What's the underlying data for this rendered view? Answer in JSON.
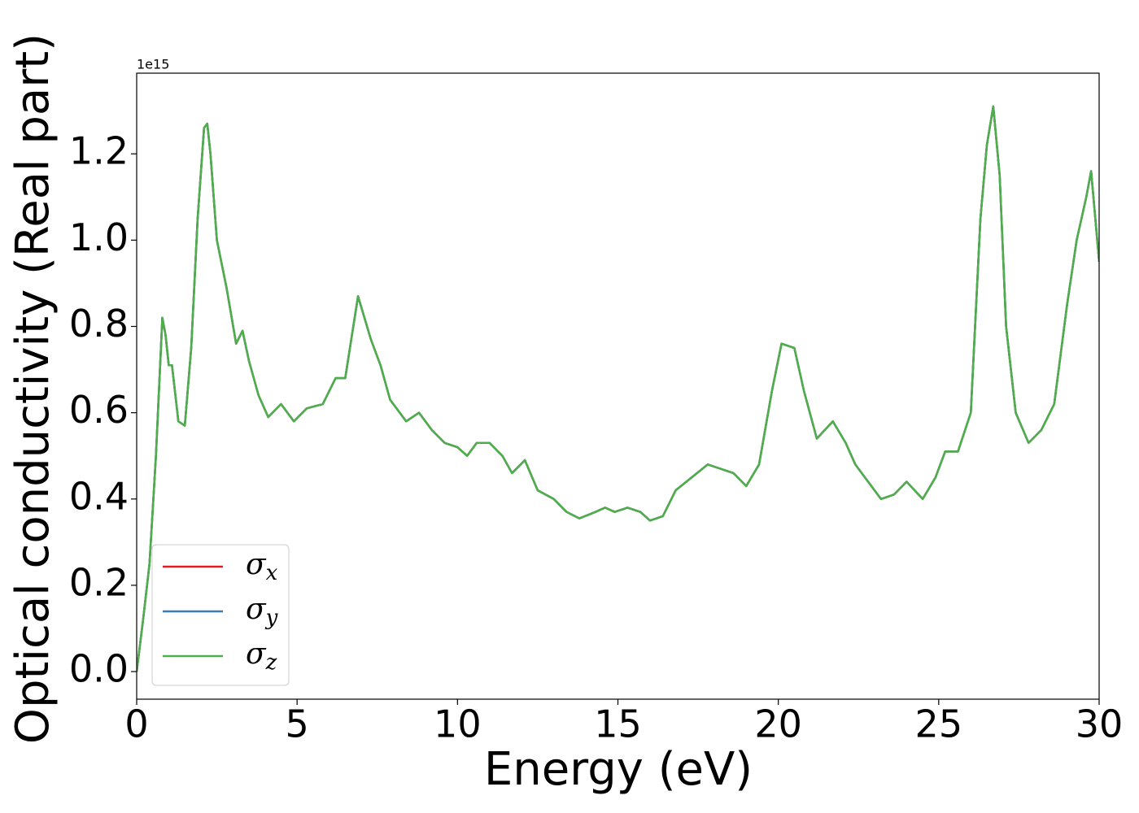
{
  "chart_data": {
    "type": "line",
    "x_label": "Energy (eV)",
    "y_label": "Optical conductivity (Real part)",
    "y_offset_label": "1e15",
    "xlim": [
      0,
      30
    ],
    "xticks": [
      0,
      5,
      10,
      15,
      20,
      25,
      30
    ],
    "ylim": [
      -0.064,
      1.387
    ],
    "yticks": [
      {
        "value": 0,
        "label": "0.0"
      },
      0.2,
      0.4,
      0.6,
      0.8,
      {
        "value": 1,
        "label": "1.0"
      },
      1.2
    ],
    "legend": "lower left",
    "x": [
      0,
      0.2,
      0.4,
      0.6,
      0.8,
      0.9,
      1.0,
      1.1,
      1.3,
      1.5,
      1.7,
      1.9,
      2.1,
      2.2,
      2.3,
      2.5,
      2.8,
      3.1,
      3.3,
      3.5,
      3.8,
      4.1,
      4.5,
      4.9,
      5.3,
      5.8,
      6.2,
      6.5,
      6.9,
      7.3,
      7.6,
      7.9,
      8.4,
      8.8,
      9.2,
      9.6,
      10.0,
      10.3,
      10.6,
      11.0,
      11.4,
      11.7,
      12.1,
      12.5,
      13.0,
      13.4,
      13.8,
      14.3,
      14.6,
      14.9,
      15.3,
      15.7,
      16.0,
      16.4,
      16.8,
      17.3,
      17.8,
      18.2,
      18.6,
      19.0,
      19.4,
      19.8,
      20.1,
      20.5,
      20.8,
      21.2,
      21.7,
      22.1,
      22.4,
      22.9,
      23.2,
      23.6,
      24.0,
      24.5,
      24.9,
      25.2,
      25.6,
      26.0,
      26.3,
      26.5,
      26.7,
      26.9,
      27.1,
      27.4,
      27.8,
      28.2,
      28.6,
      29.0,
      29.3,
      29.6,
      29.75,
      30.0
    ],
    "series": [
      {
        "name": "σx",
        "color": "#e41a1c",
        "values": [
          0,
          0.12,
          0.25,
          0.5,
          0.82,
          0.78,
          0.71,
          0.71,
          0.58,
          0.57,
          0.75,
          1.05,
          1.26,
          1.27,
          1.2,
          1.0,
          0.89,
          0.76,
          0.79,
          0.72,
          0.64,
          0.59,
          0.62,
          0.58,
          0.61,
          0.62,
          0.68,
          0.68,
          0.87,
          0.77,
          0.71,
          0.63,
          0.58,
          0.6,
          0.56,
          0.53,
          0.52,
          0.5,
          0.53,
          0.53,
          0.5,
          0.46,
          0.49,
          0.42,
          0.4,
          0.37,
          0.355,
          0.37,
          0.38,
          0.37,
          0.38,
          0.37,
          0.35,
          0.36,
          0.42,
          0.45,
          0.48,
          0.47,
          0.46,
          0.43,
          0.48,
          0.65,
          0.76,
          0.75,
          0.65,
          0.54,
          0.58,
          0.53,
          0.48,
          0.43,
          0.4,
          0.41,
          0.44,
          0.4,
          0.45,
          0.51,
          0.51,
          0.6,
          1.05,
          1.22,
          1.31,
          1.15,
          0.8,
          0.6,
          0.53,
          0.56,
          0.62,
          0.85,
          1.0,
          1.1,
          1.16,
          0.95
        ]
      },
      {
        "name": "σy",
        "color": "#377eb8",
        "values": [
          0,
          0.12,
          0.25,
          0.5,
          0.82,
          0.78,
          0.71,
          0.71,
          0.58,
          0.57,
          0.75,
          1.05,
          1.26,
          1.27,
          1.2,
          1.0,
          0.89,
          0.76,
          0.79,
          0.72,
          0.64,
          0.59,
          0.62,
          0.58,
          0.61,
          0.62,
          0.68,
          0.68,
          0.87,
          0.77,
          0.71,
          0.63,
          0.58,
          0.6,
          0.56,
          0.53,
          0.52,
          0.5,
          0.53,
          0.53,
          0.5,
          0.46,
          0.49,
          0.42,
          0.4,
          0.37,
          0.355,
          0.37,
          0.38,
          0.37,
          0.38,
          0.37,
          0.35,
          0.36,
          0.42,
          0.45,
          0.48,
          0.47,
          0.46,
          0.43,
          0.48,
          0.65,
          0.76,
          0.75,
          0.65,
          0.54,
          0.58,
          0.53,
          0.48,
          0.43,
          0.4,
          0.41,
          0.44,
          0.4,
          0.45,
          0.51,
          0.51,
          0.6,
          1.05,
          1.22,
          1.31,
          1.15,
          0.8,
          0.6,
          0.53,
          0.56,
          0.62,
          0.85,
          1.0,
          1.1,
          1.16,
          0.95
        ]
      },
      {
        "name": "σz",
        "color": "#4daf4a",
        "values": [
          0,
          0.12,
          0.25,
          0.5,
          0.82,
          0.78,
          0.71,
          0.71,
          0.58,
          0.57,
          0.75,
          1.05,
          1.26,
          1.27,
          1.2,
          1.0,
          0.89,
          0.76,
          0.79,
          0.72,
          0.64,
          0.59,
          0.62,
          0.58,
          0.61,
          0.62,
          0.68,
          0.68,
          0.87,
          0.77,
          0.71,
          0.63,
          0.58,
          0.6,
          0.56,
          0.53,
          0.52,
          0.5,
          0.53,
          0.53,
          0.5,
          0.46,
          0.49,
          0.42,
          0.4,
          0.37,
          0.355,
          0.37,
          0.38,
          0.37,
          0.38,
          0.37,
          0.35,
          0.36,
          0.42,
          0.45,
          0.48,
          0.47,
          0.46,
          0.43,
          0.48,
          0.65,
          0.76,
          0.75,
          0.65,
          0.54,
          0.58,
          0.53,
          0.48,
          0.43,
          0.4,
          0.41,
          0.44,
          0.4,
          0.45,
          0.51,
          0.51,
          0.6,
          1.05,
          1.22,
          1.31,
          1.15,
          0.8,
          0.6,
          0.53,
          0.56,
          0.62,
          0.85,
          1.0,
          1.1,
          1.16,
          0.95
        ]
      }
    ]
  }
}
